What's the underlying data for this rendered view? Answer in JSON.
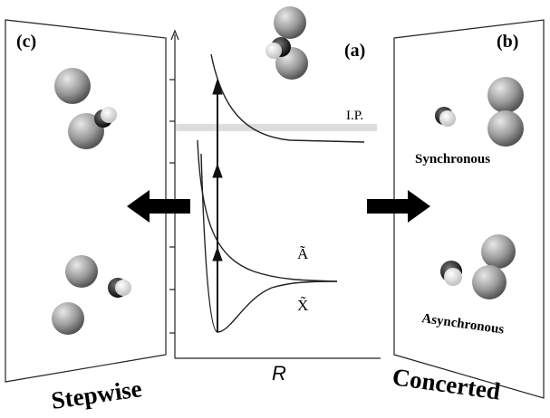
{
  "panels": {
    "stepwise": {
      "label": "(c)",
      "caption": "Stepwise"
    },
    "potential": {
      "label": "(a)",
      "axis_label": "R",
      "ionization_label": "I.P.",
      "upper_state_label": "Ã",
      "ground_state_label": "X̃"
    },
    "concerted": {
      "label": "(b)",
      "caption": "Concerted",
      "synchronous_label": "Synchronous",
      "asynchronous_label": "Asynchronous"
    }
  }
}
